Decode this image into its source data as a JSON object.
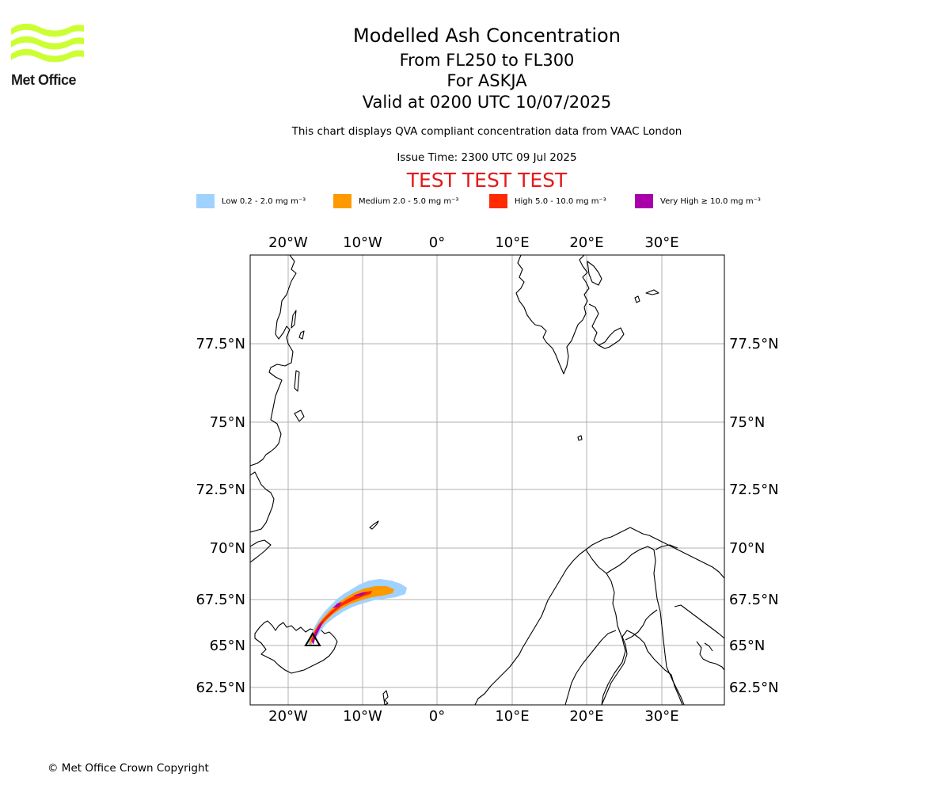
{
  "logo": {
    "text": "Met Office",
    "icon": "met-office-wave-logo",
    "color": "#ccff33"
  },
  "header": {
    "title": "Modelled Ash Concentration",
    "levels": "From FL250 to FL300",
    "volcano": "For ASKJA",
    "valid": "Valid at 0200 UTC 10/07/2025",
    "subtitle": "This chart displays QVA compliant concentration data from VAAC London",
    "issue_time": "Issue Time: 2300 UTC 09 Jul 2025",
    "test_banner": "TEST TEST TEST"
  },
  "legend": [
    {
      "label": "Low 0.2 - 2.0 mg m⁻³",
      "color": "#a0d2ff"
    },
    {
      "label": "Medium 2.0 - 5.0 mg m⁻³",
      "color": "#ff9900"
    },
    {
      "label": "High 5.0 - 10.0 mg m⁻³",
      "color": "#ff2a00"
    },
    {
      "label": "Very High  ≥  10.0 mg m⁻³",
      "color": "#aa00aa"
    }
  ],
  "map": {
    "lon_labels": [
      "20°W",
      "10°W",
      "0°",
      "10°E",
      "20°E",
      "30°E"
    ],
    "lat_labels": [
      "77.5°N",
      "75°N",
      "72.5°N",
      "70°N",
      "67.5°N",
      "65°N",
      "62.5°N"
    ],
    "volcano_marker": "triangle",
    "grid": true
  },
  "footer": {
    "copyright": "© Met Office Crown Copyright"
  }
}
